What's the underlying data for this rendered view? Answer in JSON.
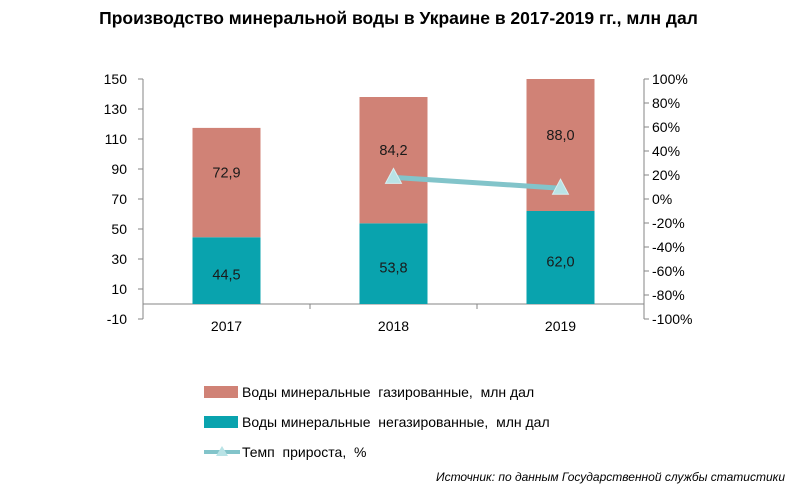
{
  "title": "Производство минеральной воды в Украине в 2017-2019 гг., млн дал",
  "colors": {
    "carbonated": "#D08276",
    "still": "#09A3AE",
    "growth_line": "#82C4CA",
    "axis": "#868686"
  },
  "chart_data": {
    "type": "bar",
    "stacked": true,
    "categories": [
      "2017",
      "2018",
      "2019"
    ],
    "series": [
      {
        "name": "Воды минеральные  негазированные,  млн дал",
        "values": [
          44.5,
          53.8,
          62.0
        ],
        "labels": [
          "44,5",
          "53,8",
          "62,0"
        ],
        "axis": "left"
      },
      {
        "name": "Воды минеральные  газированные,  млн дал",
        "values": [
          72.9,
          84.2,
          88.0
        ],
        "labels": [
          "72,9",
          "84,2",
          "88,0"
        ],
        "axis": "left"
      },
      {
        "name": "Темп  прироста,  %",
        "type": "line",
        "axis": "right",
        "x": [
          "2018",
          "2019"
        ],
        "values": [
          18,
          9
        ]
      }
    ],
    "ylim": [
      -10,
      150
    ],
    "y_ticks": [
      "-10",
      "10",
      "30",
      "50",
      "70",
      "90",
      "110",
      "130",
      "150"
    ],
    "y2lim": [
      -100,
      100
    ],
    "y2_ticks": [
      "-100%",
      "-80%",
      "-60%",
      "-40%",
      "-20%",
      "0%",
      "20%",
      "40%",
      "60%",
      "80%",
      "100%"
    ],
    "grid": false,
    "legend": "bottom"
  },
  "legend": {
    "carbonated": "Воды минеральные  газированные,  млн дал",
    "still": "Воды минеральные  негазированные,  млн дал",
    "growth": "Темп  прироста,  %"
  },
  "source": "Источник: по данным Государственной службы статистики"
}
